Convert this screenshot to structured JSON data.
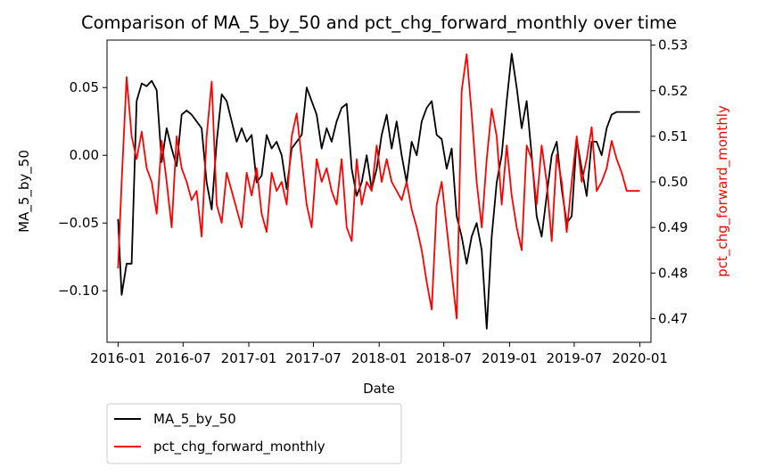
{
  "chart_data": {
    "type": "line",
    "title": "Comparison of MA_5_by_50 and pct_chg_forward_monthly over time",
    "xlabel": "Date",
    "ylabel_left": "MA_5_by_50",
    "ylabel_right": "pct_chg_forward_monthly",
    "ylabel_right_color": "#ff0000",
    "xlim": [
      "2015-12-01",
      "2020-02-01"
    ],
    "x_ticks": [
      "2016-01-01",
      "2016-07-01",
      "2017-01-01",
      "2017-07-01",
      "2018-01-01",
      "2018-07-01",
      "2019-01-01",
      "2019-07-01",
      "2020-01-01"
    ],
    "x_tick_labels": [
      "2016-01",
      "2016-07",
      "2017-01",
      "2017-07",
      "2018-01",
      "2018-07",
      "2019-01",
      "2019-07",
      "2020-01"
    ],
    "ylim_left": [
      -0.138,
      0.085
    ],
    "ylim_right": [
      0.4648,
      0.5311
    ],
    "y_ticks_left": [
      0.05,
      0.0,
      -0.05,
      -0.1
    ],
    "y_tick_labels_left": [
      "0.05",
      "0.00",
      "−0.05",
      "−0.10"
    ],
    "y_ticks_right": [
      0.53,
      0.52,
      0.51,
      0.5,
      0.49,
      0.48,
      0.47
    ],
    "y_tick_labels_right": [
      "0.53",
      "0.52",
      "0.51",
      "0.50",
      "0.49",
      "0.48",
      "0.47"
    ],
    "grid": false,
    "legend_position": "below-left",
    "series": [
      {
        "name": "MA_5_by_50",
        "axis": "left",
        "color": "#000000",
        "x": [
          "2016-01-01",
          "2016-01-11",
          "2016-01-25",
          "2016-02-08",
          "2016-02-22",
          "2016-03-07",
          "2016-03-21",
          "2016-04-04",
          "2016-04-18",
          "2016-05-02",
          "2016-05-16",
          "2016-05-30",
          "2016-06-13",
          "2016-06-27",
          "2016-07-11",
          "2016-07-25",
          "2016-08-08",
          "2016-08-22",
          "2016-09-05",
          "2016-09-19",
          "2016-10-03",
          "2016-10-17",
          "2016-10-31",
          "2016-11-14",
          "2016-11-28",
          "2016-12-12",
          "2016-12-26",
          "2017-01-09",
          "2017-01-23",
          "2017-02-06",
          "2017-02-20",
          "2017-03-06",
          "2017-03-20",
          "2017-04-03",
          "2017-04-17",
          "2017-05-01",
          "2017-05-15",
          "2017-05-29",
          "2017-06-12",
          "2017-06-26",
          "2017-07-10",
          "2017-07-24",
          "2017-08-07",
          "2017-08-21",
          "2017-09-04",
          "2017-09-18",
          "2017-10-02",
          "2017-10-16",
          "2017-10-30",
          "2017-11-13",
          "2017-11-27",
          "2017-12-11",
          "2017-12-25",
          "2018-01-08",
          "2018-01-22",
          "2018-02-05",
          "2018-02-19",
          "2018-03-05",
          "2018-03-19",
          "2018-04-02",
          "2018-04-16",
          "2018-04-30",
          "2018-05-14",
          "2018-05-28",
          "2018-06-11",
          "2018-06-25",
          "2018-07-09",
          "2018-07-23",
          "2018-08-06",
          "2018-08-20",
          "2018-09-03",
          "2018-09-17",
          "2018-10-01",
          "2018-10-15",
          "2018-10-29",
          "2018-11-12",
          "2018-11-26",
          "2018-12-10",
          "2018-12-24",
          "2019-01-07",
          "2019-01-21",
          "2019-02-04",
          "2019-02-18",
          "2019-03-04",
          "2019-03-18",
          "2019-04-01",
          "2019-04-15",
          "2019-04-29",
          "2019-05-13",
          "2019-05-27",
          "2019-06-10",
          "2019-06-24",
          "2019-07-08",
          "2019-07-22",
          "2019-08-05",
          "2019-08-19",
          "2019-09-02",
          "2019-09-16",
          "2019-09-30",
          "2019-10-14",
          "2019-10-28",
          "2019-11-11",
          "2019-11-25",
          "2019-12-09",
          "2019-12-23",
          "2020-01-01"
        ],
        "values": [
          -0.047,
          -0.103,
          -0.08,
          -0.08,
          0.04,
          0.053,
          0.051,
          0.055,
          0.048,
          -0.005,
          0.02,
          0.005,
          -0.008,
          0.03,
          0.033,
          0.03,
          0.025,
          0.02,
          -0.02,
          -0.04,
          0.01,
          0.045,
          0.04,
          0.025,
          0.01,
          0.02,
          0.01,
          0.015,
          -0.02,
          -0.015,
          0.015,
          0.005,
          0.01,
          0.0,
          -0.025,
          0.005,
          0.01,
          0.015,
          0.05,
          0.04,
          0.03,
          0.005,
          0.02,
          0.01,
          0.025,
          0.035,
          0.038,
          -0.01,
          -0.03,
          -0.02,
          0.0,
          -0.025,
          -0.01,
          0.015,
          0.03,
          0.005,
          0.025,
          0.0,
          -0.02,
          0.01,
          0.0,
          0.025,
          0.035,
          0.04,
          0.015,
          0.012,
          -0.01,
          0.005,
          -0.045,
          -0.06,
          -0.08,
          -0.06,
          -0.05,
          -0.07,
          -0.128,
          -0.06,
          -0.02,
          0.0,
          0.04,
          0.075,
          0.05,
          0.02,
          0.04,
          0.0,
          -0.045,
          -0.06,
          -0.03,
          0.0,
          0.01,
          -0.025,
          -0.05,
          -0.045,
          0.012,
          -0.01,
          -0.03,
          0.01,
          0.01,
          0.0,
          0.02,
          0.03,
          0.032,
          0.032,
          0.032,
          0.032,
          0.032,
          0.032
        ]
      },
      {
        "name": "pct_chg_forward_monthly",
        "axis": "right",
        "color": "#ff0000",
        "x": [
          "2016-01-01",
          "2016-01-11",
          "2016-01-25",
          "2016-02-08",
          "2016-02-22",
          "2016-03-07",
          "2016-03-21",
          "2016-04-04",
          "2016-04-18",
          "2016-05-02",
          "2016-05-16",
          "2016-05-30",
          "2016-06-13",
          "2016-06-27",
          "2016-07-11",
          "2016-07-25",
          "2016-08-08",
          "2016-08-22",
          "2016-09-05",
          "2016-09-19",
          "2016-10-03",
          "2016-10-17",
          "2016-10-31",
          "2016-11-14",
          "2016-11-28",
          "2016-12-12",
          "2016-12-26",
          "2017-01-09",
          "2017-01-23",
          "2017-02-06",
          "2017-02-20",
          "2017-03-06",
          "2017-03-20",
          "2017-04-03",
          "2017-04-17",
          "2017-05-01",
          "2017-05-15",
          "2017-05-29",
          "2017-06-12",
          "2017-06-26",
          "2017-07-10",
          "2017-07-24",
          "2017-08-07",
          "2017-08-21",
          "2017-09-04",
          "2017-09-18",
          "2017-10-02",
          "2017-10-16",
          "2017-10-30",
          "2017-11-13",
          "2017-11-27",
          "2017-12-11",
          "2017-12-25",
          "2018-01-08",
          "2018-01-22",
          "2018-02-05",
          "2018-02-19",
          "2018-03-05",
          "2018-03-19",
          "2018-04-02",
          "2018-04-16",
          "2018-04-30",
          "2018-05-14",
          "2018-05-28",
          "2018-06-11",
          "2018-06-25",
          "2018-07-09",
          "2018-07-23",
          "2018-08-06",
          "2018-08-20",
          "2018-09-03",
          "2018-09-17",
          "2018-10-01",
          "2018-10-15",
          "2018-10-29",
          "2018-11-12",
          "2018-11-26",
          "2018-12-10",
          "2018-12-24",
          "2019-01-07",
          "2019-01-21",
          "2019-02-04",
          "2019-02-18",
          "2019-03-04",
          "2019-03-18",
          "2019-04-01",
          "2019-04-15",
          "2019-04-29",
          "2019-05-13",
          "2019-05-27",
          "2019-06-10",
          "2019-06-24",
          "2019-07-08",
          "2019-07-22",
          "2019-08-05",
          "2019-08-19",
          "2019-09-02",
          "2019-09-16",
          "2019-09-30",
          "2019-10-14",
          "2019-10-28",
          "2019-11-11",
          "2019-11-25",
          "2019-12-09",
          "2019-12-23",
          "2020-01-01"
        ],
        "values": [
          0.481,
          0.5,
          0.523,
          0.51,
          0.505,
          0.511,
          0.503,
          0.5,
          0.493,
          0.509,
          0.5,
          0.49,
          0.51,
          0.503,
          0.5,
          0.496,
          0.498,
          0.488,
          0.51,
          0.522,
          0.495,
          0.491,
          0.502,
          0.498,
          0.494,
          0.49,
          0.502,
          0.497,
          0.503,
          0.493,
          0.489,
          0.502,
          0.498,
          0.5,
          0.495,
          0.51,
          0.515,
          0.505,
          0.495,
          0.49,
          0.505,
          0.5,
          0.503,
          0.498,
          0.495,
          0.505,
          0.49,
          0.487,
          0.505,
          0.495,
          0.5,
          0.498,
          0.508,
          0.5,
          0.505,
          0.5,
          0.498,
          0.496,
          0.5,
          0.494,
          0.49,
          0.485,
          0.478,
          0.472,
          0.495,
          0.5,
          0.49,
          0.48,
          0.47,
          0.52,
          0.528,
          0.515,
          0.5,
          0.49,
          0.505,
          0.516,
          0.51,
          0.495,
          0.508,
          0.497,
          0.49,
          0.485,
          0.508,
          0.505,
          0.495,
          0.508,
          0.5,
          0.487,
          0.506,
          0.5,
          0.489,
          0.5,
          0.51,
          0.5,
          0.505,
          0.512,
          0.498,
          0.5,
          0.503,
          0.509,
          0.505,
          0.502,
          0.498,
          0.498,
          0.498,
          0.498
        ]
      }
    ]
  }
}
